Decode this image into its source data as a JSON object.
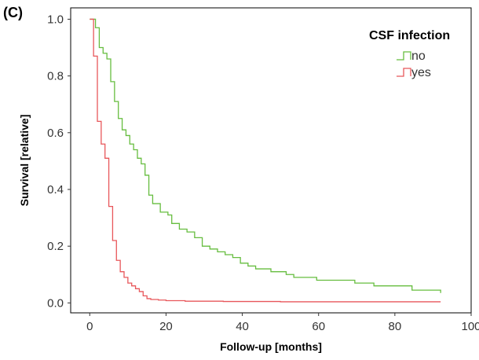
{
  "panel_label": "(C)",
  "chart_data": {
    "type": "line",
    "step": true,
    "xlabel": "Follow-up [months]",
    "ylabel": "Survival [relative]",
    "xlim": [
      -5,
      100
    ],
    "ylim": [
      -0.035,
      1.04
    ],
    "xticks": [
      0,
      20,
      40,
      60,
      80,
      100
    ],
    "yticks": [
      0.0,
      0.2,
      0.4,
      0.6,
      0.8,
      1.0
    ],
    "ytick_labels": [
      "0.0",
      "0.2",
      "0.4",
      "0.6",
      "0.8",
      "1.0"
    ],
    "grid": false,
    "legend": {
      "title": "CSF infection",
      "placement": "top-right"
    },
    "series": [
      {
        "name": "no",
        "color": "#66bd3f",
        "x": [
          0,
          1.5,
          2.5,
          3.5,
          4.5,
          5.5,
          6.5,
          7.5,
          8.5,
          9.5,
          10.5,
          11.5,
          12.5,
          13.5,
          14.5,
          15.5,
          16.5,
          18.5,
          20.5,
          21.5,
          23.5,
          25.5,
          27.5,
          29.5,
          31.5,
          33.5,
          35.5,
          37.5,
          39.5,
          41.5,
          43.5,
          45.5,
          47.5,
          51.5,
          53.5,
          59.5,
          64.5,
          69.5,
          74.5,
          84.5,
          92
        ],
        "y": [
          1.0,
          0.97,
          0.9,
          0.88,
          0.86,
          0.78,
          0.71,
          0.65,
          0.61,
          0.59,
          0.56,
          0.54,
          0.51,
          0.49,
          0.45,
          0.38,
          0.35,
          0.32,
          0.31,
          0.28,
          0.26,
          0.25,
          0.23,
          0.2,
          0.19,
          0.18,
          0.17,
          0.16,
          0.14,
          0.13,
          0.12,
          0.12,
          0.11,
          0.1,
          0.09,
          0.08,
          0.08,
          0.07,
          0.06,
          0.045,
          0.035
        ]
      },
      {
        "name": "yes",
        "color": "#e8575b",
        "x": [
          0,
          1,
          2,
          3,
          4,
          5,
          6,
          7,
          8,
          9,
          10,
          11,
          12,
          13,
          14,
          15,
          16,
          18,
          20,
          25,
          35,
          50,
          92
        ],
        "y": [
          1.0,
          0.87,
          0.64,
          0.56,
          0.51,
          0.34,
          0.22,
          0.15,
          0.11,
          0.09,
          0.07,
          0.06,
          0.05,
          0.04,
          0.025,
          0.015,
          0.012,
          0.01,
          0.008,
          0.006,
          0.005,
          0.004,
          0.004
        ]
      }
    ]
  }
}
